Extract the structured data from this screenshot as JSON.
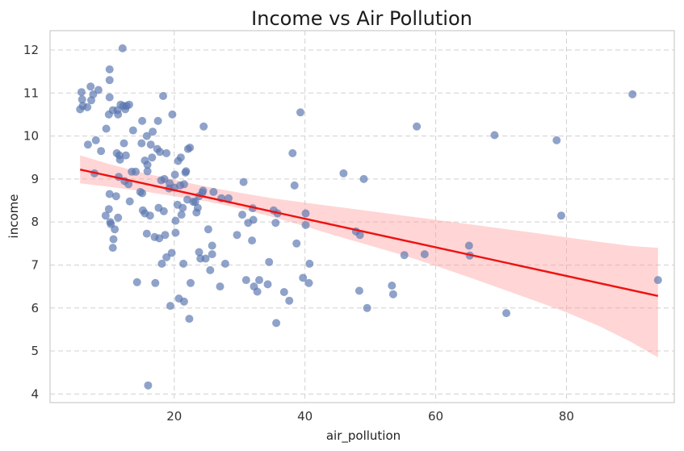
{
  "chart_data": {
    "type": "scatter",
    "title": "Income vs Air Pollution",
    "xlabel": "air_pollution",
    "ylabel": "income",
    "xlim": [
      1,
      96.5
    ],
    "ylim": [
      3.8,
      12.45
    ],
    "xticks": [
      20,
      40,
      60,
      80
    ],
    "yticks": [
      4,
      5,
      6,
      7,
      8,
      9,
      10,
      11,
      12
    ],
    "grid": true,
    "colors": {
      "points": "#5a76b0",
      "fit_line": "#ee1111",
      "ci_band": "#ff9c9c",
      "grid": "#d0d0d0",
      "frame": "#cccccc"
    },
    "series": [
      {
        "kind": "points",
        "points": [
          [
            5.6,
            10.62
          ],
          [
            5.8,
            11.02
          ],
          [
            5.9,
            10.85
          ],
          [
            6.0,
            10.7
          ],
          [
            6.7,
            10.67
          ],
          [
            7.2,
            11.15
          ],
          [
            7.3,
            10.83
          ],
          [
            7.6,
            10.97
          ],
          [
            6.8,
            9.8
          ],
          [
            7.8,
            9.13
          ],
          [
            8.0,
            9.9
          ],
          [
            8.4,
            11.07
          ],
          [
            8.8,
            9.65
          ],
          [
            9.5,
            8.15
          ],
          [
            9.6,
            10.17
          ],
          [
            10.0,
            10.5
          ],
          [
            10.1,
            11.55
          ],
          [
            10.1,
            11.3
          ],
          [
            10.1,
            10.9
          ],
          [
            10.1,
            8.65
          ],
          [
            10.0,
            8.3
          ],
          [
            10.2,
            8.0
          ],
          [
            10.3,
            7.95
          ],
          [
            10.6,
            7.4
          ],
          [
            10.6,
            10.6
          ],
          [
            10.7,
            7.6
          ],
          [
            10.9,
            7.83
          ],
          [
            11.1,
            8.6
          ],
          [
            11.2,
            9.6
          ],
          [
            11.3,
            10.6
          ],
          [
            11.4,
            10.5
          ],
          [
            11.4,
            8.1
          ],
          [
            11.5,
            9.05
          ],
          [
            11.6,
            9.55
          ],
          [
            11.7,
            9.45
          ],
          [
            11.8,
            10.73
          ],
          [
            12.1,
            12.04
          ],
          [
            12.2,
            10.7
          ],
          [
            12.3,
            9.83
          ],
          [
            12.4,
            8.95
          ],
          [
            12.5,
            10.62
          ],
          [
            12.6,
            9.55
          ],
          [
            12.7,
            10.7
          ],
          [
            13.0,
            8.88
          ],
          [
            13.1,
            10.73
          ],
          [
            13.2,
            8.48
          ],
          [
            13.5,
            9.17
          ],
          [
            13.7,
            10.13
          ],
          [
            14.1,
            9.17
          ],
          [
            14.3,
            6.6
          ],
          [
            14.8,
            8.7
          ],
          [
            15.0,
            9.83
          ],
          [
            15.1,
            8.67
          ],
          [
            15.1,
            10.35
          ],
          [
            15.2,
            8.27
          ],
          [
            15.5,
            9.43
          ],
          [
            15.5,
            8.2
          ],
          [
            15.8,
            10.0
          ],
          [
            15.8,
            7.73
          ],
          [
            15.9,
            9.18
          ],
          [
            15.9,
            9.33
          ],
          [
            16.0,
            4.2
          ],
          [
            16.3,
            8.15
          ],
          [
            16.4,
            9.8
          ],
          [
            16.6,
            9.5
          ],
          [
            16.7,
            10.1
          ],
          [
            17.0,
            7.65
          ],
          [
            17.1,
            6.58
          ],
          [
            17.4,
            9.7
          ],
          [
            17.5,
            10.35
          ],
          [
            17.6,
            8.33
          ],
          [
            17.7,
            7.62
          ],
          [
            17.8,
            9.63
          ],
          [
            18.0,
            8.97
          ],
          [
            18.1,
            7.03
          ],
          [
            18.3,
            10.93
          ],
          [
            18.4,
            8.25
          ],
          [
            18.5,
            9.0
          ],
          [
            18.6,
            7.7
          ],
          [
            18.8,
            9.6
          ],
          [
            18.8,
            7.18
          ],
          [
            19.2,
            8.78
          ],
          [
            19.3,
            8.9
          ],
          [
            19.4,
            6.05
          ],
          [
            19.6,
            7.28
          ],
          [
            19.7,
            10.5
          ],
          [
            20.0,
            8.8
          ],
          [
            20.1,
            9.1
          ],
          [
            20.2,
            7.75
          ],
          [
            20.2,
            8.03
          ],
          [
            20.5,
            8.4
          ],
          [
            20.6,
            9.42
          ],
          [
            20.7,
            6.22
          ],
          [
            20.9,
            8.85
          ],
          [
            21.0,
            9.5
          ],
          [
            21.1,
            8.17
          ],
          [
            21.3,
            8.33
          ],
          [
            21.4,
            7.03
          ],
          [
            21.5,
            8.88
          ],
          [
            21.5,
            6.15
          ],
          [
            21.7,
            9.15
          ],
          [
            21.8,
            9.18
          ],
          [
            22.0,
            8.52
          ],
          [
            22.1,
            9.7
          ],
          [
            22.3,
            5.75
          ],
          [
            22.4,
            9.73
          ],
          [
            22.5,
            6.58
          ],
          [
            22.9,
            8.47
          ],
          [
            23.2,
            8.47
          ],
          [
            23.4,
            8.22
          ],
          [
            23.6,
            8.33
          ],
          [
            23.8,
            7.3
          ],
          [
            23.8,
            8.6
          ],
          [
            24.0,
            7.15
          ],
          [
            24.3,
            8.68
          ],
          [
            24.4,
            8.73
          ],
          [
            24.5,
            10.22
          ],
          [
            24.8,
            7.15
          ],
          [
            25.2,
            7.83
          ],
          [
            25.5,
            6.88
          ],
          [
            25.8,
            7.45
          ],
          [
            25.8,
            7.25
          ],
          [
            26.0,
            8.7
          ],
          [
            27.0,
            6.5
          ],
          [
            27.2,
            8.55
          ],
          [
            27.8,
            7.03
          ],
          [
            28.3,
            8.55
          ],
          [
            29.6,
            7.7
          ],
          [
            30.4,
            8.17
          ],
          [
            30.6,
            8.93
          ],
          [
            31.0,
            6.65
          ],
          [
            31.3,
            7.98
          ],
          [
            31.9,
            7.57
          ],
          [
            32.0,
            8.32
          ],
          [
            32.1,
            8.05
          ],
          [
            32.2,
            6.5
          ],
          [
            32.7,
            6.38
          ],
          [
            33.0,
            6.65
          ],
          [
            34.3,
            6.55
          ],
          [
            34.5,
            7.07
          ],
          [
            35.2,
            8.27
          ],
          [
            35.5,
            7.98
          ],
          [
            35.6,
            5.65
          ],
          [
            35.8,
            8.2
          ],
          [
            36.8,
            6.37
          ],
          [
            37.6,
            6.17
          ],
          [
            38.1,
            9.6
          ],
          [
            38.4,
            8.85
          ],
          [
            38.7,
            7.5
          ],
          [
            39.3,
            10.55
          ],
          [
            39.7,
            6.7
          ],
          [
            40.1,
            8.2
          ],
          [
            40.1,
            7.93
          ],
          [
            40.6,
            6.58
          ],
          [
            40.7,
            7.03
          ],
          [
            45.9,
            9.13
          ],
          [
            47.8,
            7.78
          ],
          [
            48.3,
            6.4
          ],
          [
            48.4,
            7.7
          ],
          [
            49.0,
            9.0
          ],
          [
            49.5,
            6.0
          ],
          [
            53.3,
            6.52
          ],
          [
            53.5,
            6.32
          ],
          [
            55.2,
            7.23
          ],
          [
            57.1,
            10.22
          ],
          [
            58.3,
            7.25
          ],
          [
            65.1,
            7.45
          ],
          [
            65.2,
            7.22
          ],
          [
            69.0,
            10.02
          ],
          [
            70.8,
            5.88
          ],
          [
            78.5,
            9.9
          ],
          [
            79.2,
            8.15
          ],
          [
            90.1,
            10.97
          ],
          [
            94.0,
            6.65
          ]
        ]
      },
      {
        "kind": "regression",
        "x": [
          5.6,
          94.0
        ],
        "y": [
          9.22,
          6.28
        ]
      },
      {
        "kind": "ci_band",
        "x": [
          5.6,
          10,
          15,
          20,
          25,
          30,
          35,
          40,
          45,
          50,
          55,
          60,
          65,
          70,
          75,
          80,
          85,
          90,
          94
        ],
        "upper": [
          9.55,
          9.35,
          9.15,
          8.98,
          8.82,
          8.68,
          8.55,
          8.45,
          8.35,
          8.25,
          8.15,
          8.05,
          7.95,
          7.85,
          7.75,
          7.64,
          7.54,
          7.44,
          7.4
        ],
        "lower": [
          8.9,
          8.82,
          8.72,
          8.6,
          8.48,
          8.32,
          8.12,
          7.9,
          7.67,
          7.45,
          7.23,
          6.98,
          6.72,
          6.45,
          6.18,
          5.9,
          5.58,
          5.2,
          4.85
        ]
      }
    ]
  }
}
